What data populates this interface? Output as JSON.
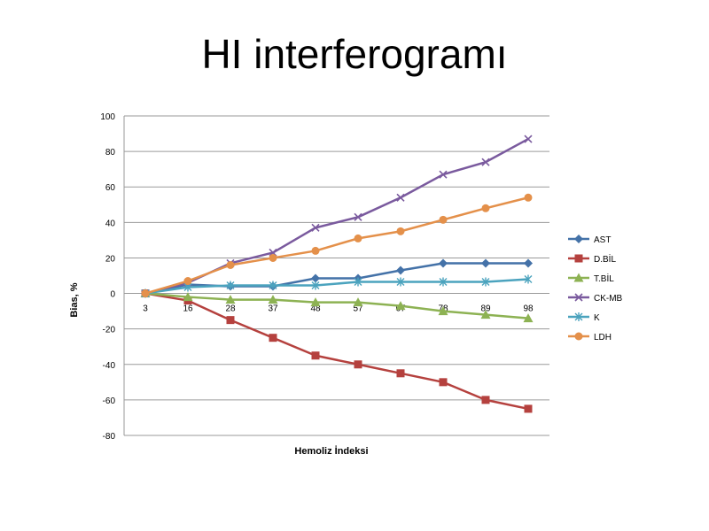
{
  "slide": {
    "title": "HI interferogramı"
  },
  "chart_data": {
    "type": "line",
    "title": "",
    "xlabel": "Hemoliz İndeksi",
    "ylabel": "Bias, %",
    "categories": [
      "3",
      "16",
      "28",
      "37",
      "48",
      "57",
      "67",
      "78",
      "89",
      "98"
    ],
    "ylim": [
      -80,
      100
    ],
    "ytick_step": 20,
    "grid": true,
    "legend_position": "right",
    "series": [
      {
        "name": "AST",
        "color": "#4472A8",
        "marker": "diamond",
        "values": [
          0,
          5,
          4,
          4,
          8.5,
          8.5,
          13,
          17,
          17,
          17
        ]
      },
      {
        "name": "D.BİL",
        "color": "#B5413E",
        "marker": "square",
        "values": [
          0,
          -4,
          -15,
          -25,
          -35,
          -40,
          -45,
          -50,
          -60,
          -65
        ]
      },
      {
        "name": "T.BİL",
        "color": "#8DB253",
        "marker": "triangle",
        "values": [
          0,
          -2,
          -3.5,
          -3.5,
          -5,
          -5,
          -7,
          -10,
          -12,
          -14
        ]
      },
      {
        "name": "CK-MB",
        "color": "#7A5A9E",
        "marker": "x",
        "values": [
          0,
          6,
          17,
          23,
          37,
          43,
          54,
          67,
          74,
          87
        ]
      },
      {
        "name": "K",
        "color": "#4BA3BE",
        "marker": "asterisk",
        "values": [
          0,
          3.5,
          4.5,
          4.5,
          4.5,
          6.5,
          6.5,
          6.5,
          6.5,
          8
        ]
      },
      {
        "name": "LDH",
        "color": "#E4904A",
        "marker": "circle",
        "values": [
          0,
          7,
          16,
          20,
          24,
          31,
          35,
          41.5,
          48,
          54
        ]
      }
    ]
  }
}
